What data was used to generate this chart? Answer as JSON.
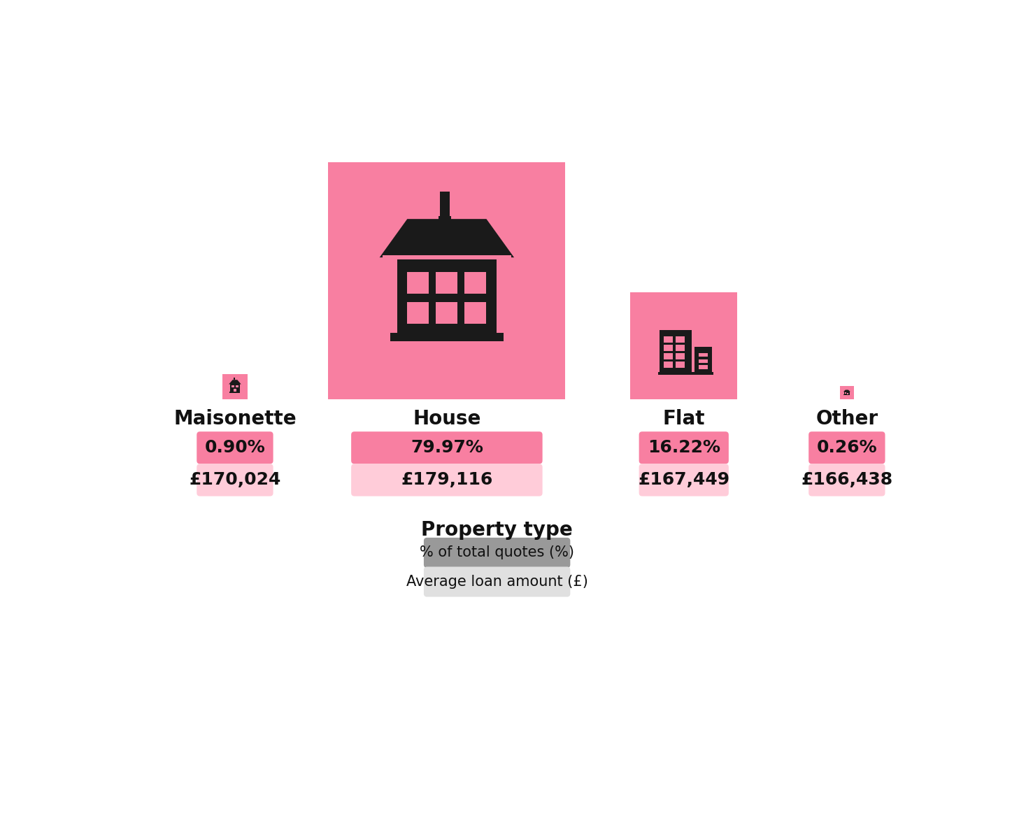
{
  "categories": [
    "Maisonette",
    "House",
    "Flat",
    "Other"
  ],
  "percentages": [
    "0.90%",
    "79.97%",
    "16.22%",
    "0.26%"
  ],
  "amounts": [
    "£170,024",
    "£179,116",
    "£167,449",
    "£166,438"
  ],
  "pct_values": [
    0.9,
    79.97,
    16.22,
    0.26
  ],
  "background_color": "#ffffff",
  "box_color": "#F87FA1",
  "pct_badge_color": "#F87FA1",
  "amt_badge_color": "#FFCCD9",
  "icon_color": "#1a1a1a",
  "title": "Property type",
  "label_fontsize": 20,
  "badge_fontsize": 18,
  "title_fontsize": 20
}
